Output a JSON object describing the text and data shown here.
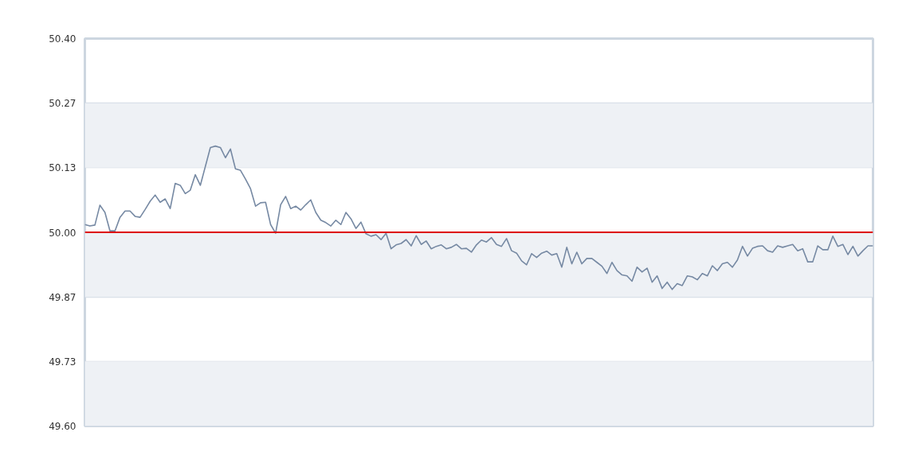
{
  "chart_data": {
    "type": "line",
    "categories": [
      null,
      null,
      null,
      null,
      null,
      null,
      null,
      null,
      null,
      null,
      null,
      null,
      null,
      null,
      null,
      null,
      null,
      null,
      null,
      null,
      null,
      null,
      null,
      null,
      null,
      null,
      null,
      null,
      null,
      null,
      null,
      null,
      null,
      null,
      null,
      null,
      null,
      null,
      null,
      null,
      null,
      null,
      null,
      null,
      null,
      null,
      null,
      null,
      null,
      null,
      null,
      null,
      null,
      null,
      null,
      null,
      null,
      null,
      null,
      null,
      null,
      null,
      null,
      null,
      null,
      null,
      null,
      null,
      null,
      null,
      null,
      null,
      null,
      null,
      null,
      null,
      null,
      null,
      null,
      null,
      null,
      null,
      null,
      null,
      null,
      null,
      null,
      null,
      null,
      null,
      null,
      null,
      null,
      null,
      null,
      null,
      null,
      null,
      null,
      null,
      null,
      null,
      null,
      null,
      null,
      null,
      null,
      null,
      null,
      null,
      null,
      null,
      null,
      null,
      null,
      null,
      null,
      null,
      null,
      null,
      null,
      null,
      null,
      null,
      null,
      null,
      null,
      null,
      null,
      null,
      null,
      null,
      null,
      null,
      null,
      null,
      null,
      null,
      null,
      null,
      null,
      null,
      null,
      null,
      null,
      null,
      null,
      null,
      null,
      null,
      null,
      null,
      null,
      null,
      null,
      null,
      null,
      null
    ],
    "series": [
      {
        "color": "#7689a3",
        "values": [
          50.016,
          50.013,
          50.015,
          50.056,
          50.041,
          50.003,
          50.003,
          50.031,
          50.044,
          50.044,
          50.033,
          50.031,
          50.047,
          50.064,
          50.077,
          50.062,
          50.069,
          50.049,
          50.101,
          50.097,
          50.08,
          50.087,
          50.119,
          50.097,
          50.136,
          50.175,
          50.178,
          50.175,
          50.154,
          50.172,
          50.131,
          50.128,
          50.11,
          50.09,
          50.054,
          50.061,
          50.062,
          50.016,
          49.998,
          50.057,
          50.074,
          50.049,
          50.054,
          50.046,
          50.057,
          50.067,
          50.041,
          50.025,
          50.02,
          50.013,
          50.025,
          50.016,
          50.041,
          50.028,
          50.008,
          50.021,
          49.997,
          49.992,
          49.995,
          49.985,
          49.998,
          49.966,
          49.974,
          49.977,
          49.985,
          49.972,
          49.993,
          49.975,
          49.982,
          49.966,
          49.971,
          49.974,
          49.966,
          49.969,
          49.975,
          49.966,
          49.967,
          49.959,
          49.974,
          49.984,
          49.98,
          49.989,
          49.975,
          49.971,
          49.987,
          49.962,
          49.957,
          49.941,
          49.933,
          49.956,
          49.948,
          49.957,
          49.961,
          49.953,
          49.956,
          49.928,
          49.969,
          49.935,
          49.959,
          49.935,
          49.946,
          49.946,
          49.938,
          49.93,
          49.915,
          49.938,
          49.921,
          49.912,
          49.91,
          49.899,
          49.928,
          49.918,
          49.926,
          49.897,
          49.91,
          49.884,
          49.897,
          49.882,
          49.894,
          49.89,
          49.91,
          49.908,
          49.902,
          49.915,
          49.91,
          49.931,
          49.921,
          49.935,
          49.938,
          49.928,
          49.943,
          49.971,
          49.951,
          49.967,
          49.971,
          49.972,
          49.962,
          49.959,
          49.972,
          49.969,
          49.972,
          49.975,
          49.962,
          49.966,
          49.939,
          49.939,
          49.972,
          49.964,
          49.964,
          49.992,
          49.971,
          49.975,
          49.954,
          49.971,
          49.951,
          49.962,
          49.972,
          49.972
        ]
      }
    ],
    "ylim": [
      49.6,
      50.4
    ],
    "yticks": [
      {
        "value": 50.4,
        "label": "50.40"
      },
      {
        "value": 50.26667,
        "label": "50.27"
      },
      {
        "value": 50.13333,
        "label": "50.13"
      },
      {
        "value": 50.0,
        "label": "50.00"
      },
      {
        "value": 49.86667,
        "label": "49.87"
      },
      {
        "value": 49.73333,
        "label": "49.73"
      },
      {
        "value": 49.6,
        "label": "49.60"
      }
    ],
    "ref_lines": [
      {
        "axis": "y",
        "value": 50.0,
        "color": "#dd0000",
        "line_style": "solid"
      }
    ],
    "bands": [
      {
        "axis": "y",
        "from": 50.13333,
        "to": 50.26667,
        "color": "#eef1f5"
      },
      {
        "axis": "y",
        "from": 49.86667,
        "to": 50.0,
        "color": "#eef1f5"
      },
      {
        "axis": "y",
        "from": 49.6,
        "to": 49.73333,
        "color": "#eef1f5"
      }
    ],
    "grid": "y",
    "tick_labels": "y",
    "marker": "none",
    "line_style": "solid"
  }
}
